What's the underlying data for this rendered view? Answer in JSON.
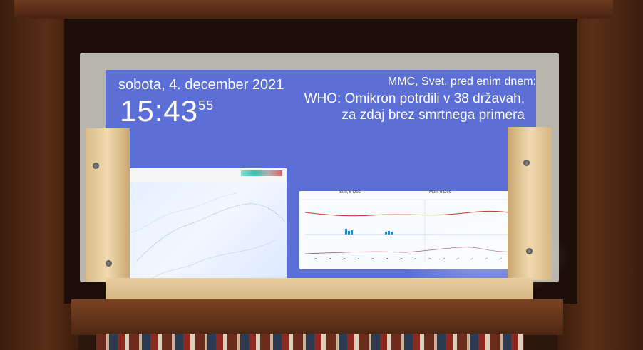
{
  "dashboard": {
    "date": "sobota, 4. december 2021",
    "time_hm": "15:43",
    "time_sec": "55"
  },
  "news": {
    "source": "MMC, Svet, pred enim dnem:",
    "headline_line1": "WHO: Omikron potrdili v 38 državah,",
    "headline_line2": "za zdaj brez smrtnega primera"
  },
  "forecast": {
    "day1": "Sun, 5 Dec",
    "day2": "Mon, 6 Dec"
  },
  "colors": {
    "screen_bg": "#5c6fd6",
    "text": "#ffffff"
  }
}
